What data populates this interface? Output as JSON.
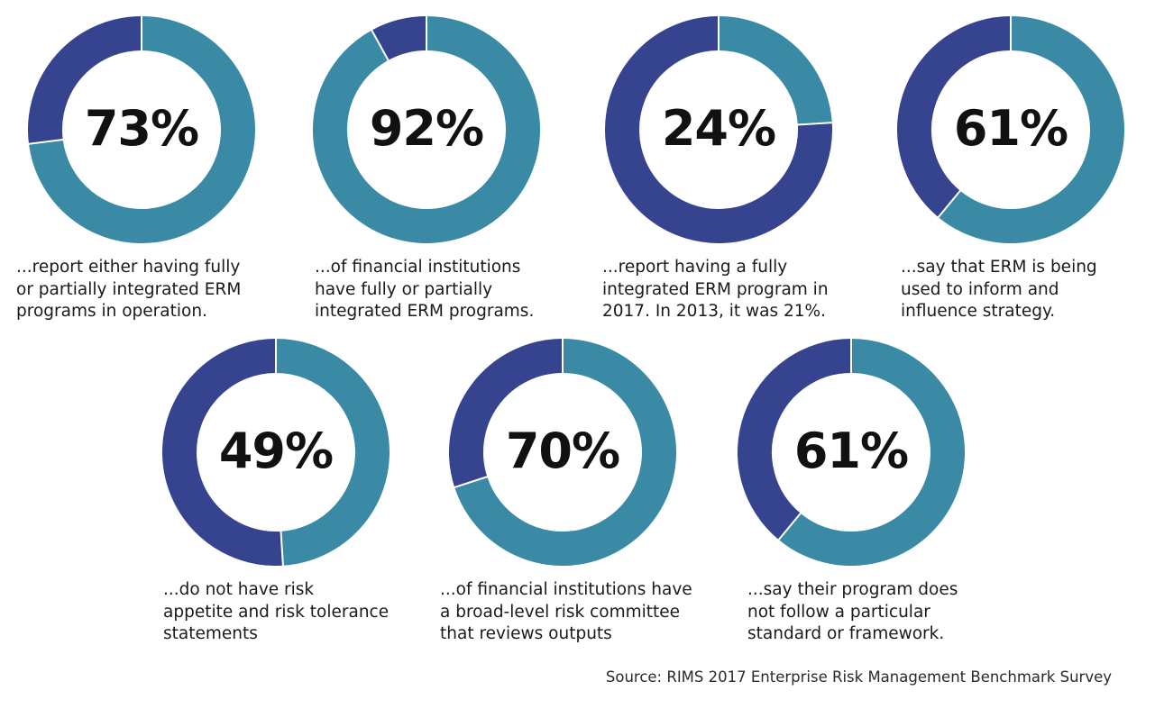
{
  "colors": {
    "primary": "#3a8aa6",
    "secondary": "#36448f",
    "separator": "#ffffff"
  },
  "chart_data": [
    {
      "type": "pie",
      "value": 73,
      "label": "73%",
      "caption": "...report either having fully\nor partially integrated ERM\nprograms in operation."
    },
    {
      "type": "pie",
      "value": 92,
      "label": "92%",
      "caption": "...of financial institutions\nhave fully or partially\nintegrated ERM programs."
    },
    {
      "type": "pie",
      "value": 24,
      "label": "24%",
      "caption": "...report having a fully\nintegrated ERM program in\n2017. In 2013, it was 21%."
    },
    {
      "type": "pie",
      "value": 61,
      "label": "61%",
      "caption": "...say that ERM is being\nused to inform and\ninfluence strategy."
    },
    {
      "type": "pie",
      "value": 49,
      "label": "49%",
      "caption": "...do not have risk\nappetite and risk tolerance\nstatements"
    },
    {
      "type": "pie",
      "value": 70,
      "label": "70%",
      "caption": "...of financial institutions have\na broad-level risk committee\nthat reviews outputs"
    },
    {
      "type": "pie",
      "value": 61,
      "label": "61%",
      "caption": "...say their program does\nnot follow a particular\nstandard or framework."
    }
  ],
  "source": "Source: RIMS 2017 Enterprise Risk Management Benchmark Survey"
}
